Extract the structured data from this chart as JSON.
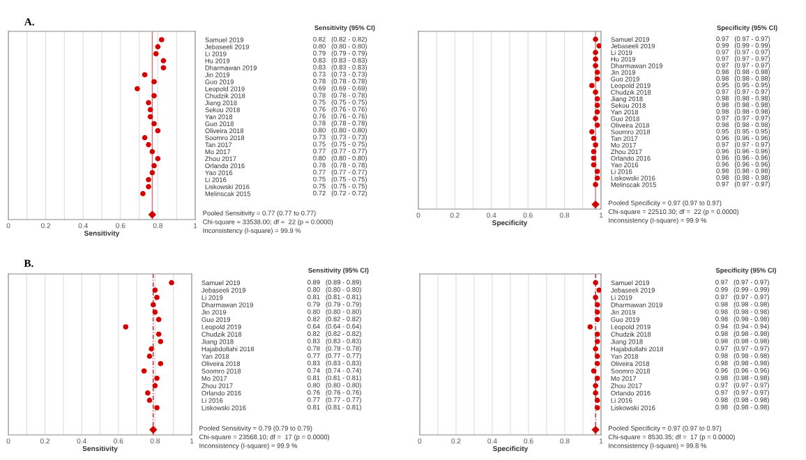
{
  "chart_data": [
    {
      "type": "scatter",
      "title": "A.",
      "xlabel": "Sensitivity",
      "orientation": "horizontal",
      "grid": "x",
      "legend": false,
      "categories": [
        "Samuel 2019",
        "Jebaseeli 2019",
        "Li 2019",
        "Hu 2019",
        "Dharmawan 2019",
        "Jin 2019",
        "Guo 2019",
        "Leopold 2019",
        "Chudzik 2018",
        "Jiang 2018",
        "Sekou 2018",
        "Yan 2018",
        "Guo 2018",
        "Oliveira 2018",
        "Soomro 2018",
        "Tan 2017",
        "Mo 2017",
        "Zhou 2017",
        "Orlando 2016",
        "Yao 2016",
        "Li 2016",
        "Liskowski 2016",
        "Melinscak 2015",
        null,
        null,
        null
      ],
      "xlim": [
        0,
        1
      ],
      "xticks": [
        0,
        {
          "value": 0.1,
          "label": null
        },
        0.2,
        {
          "value": 0.3,
          "label": null
        },
        0.4,
        {
          "value": 0.5,
          "label": null
        },
        0.6,
        {
          "value": 0.7,
          "label": null
        },
        0.8,
        {
          "value": 0.9,
          "label": null
        },
        1
      ],
      "series": [
        {
          "color": "#d40000",
          "marker": "circle",
          "values": [
            0.82,
            0.8,
            0.79,
            0.83,
            0.83,
            0.73,
            0.78,
            0.69,
            0.78,
            0.75,
            0.76,
            0.76,
            0.78,
            0.8,
            0.73,
            0.75,
            0.77,
            0.8,
            0.78,
            0.77,
            0.75,
            0.75,
            0.72,
            null,
            null,
            null
          ],
          "value_labels": [
            "0.82   (0.82 - 0.82)",
            "0.80   (0.80 - 0.80)",
            "0.79   (0.79 - 0.79)",
            "0.83   (0.83 - 0.83)",
            "0.83   (0.83 - 0.83)",
            "0.73   (0.73 - 0.73)",
            "0.78   (0.78 - 0.78)",
            "0.69   (0.69 - 0.69)",
            "0.78   (0.78 - 0.78)",
            "0.75   (0.75 - 0.75)",
            "0.76   (0.76 - 0.76)",
            "0.76   (0.76 - 0.76)",
            "0.78   (0.78 - 0.78)",
            "0.80   (0.80 - 0.80)",
            "0.73   (0.73 - 0.73)",
            "0.75   (0.75 - 0.75)",
            "0.77   (0.77 - 0.77)",
            "0.80   (0.80 - 0.80)",
            "0.78   (0.78 - 0.78)",
            "0.77   (0.77 - 0.77)",
            "0.75   (0.75 - 0.75)",
            "0.75   (0.75 - 0.75)",
            "0.72   (0.72 - 0.72)",
            null,
            null,
            null
          ]
        },
        {
          "color": "#d40000",
          "marker": "diamond",
          "values": [
            null,
            null,
            null,
            null,
            null,
            null,
            null,
            null,
            null,
            null,
            null,
            null,
            null,
            null,
            null,
            null,
            null,
            null,
            null,
            null,
            null,
            null,
            null,
            null,
            null,
            0.77
          ]
        }
      ],
      "ref_lines": [
        {
          "axis": "x",
          "value": 0.77,
          "color": "#e06060",
          "line_style": "solid"
        }
      ],
      "annotations": [
        "Sensitivity (95% CI)",
        "Pooled Sensitivity = 0.77 (0.77 to 0.77)",
        "Chi-square = 33538.00; df =  22 (p = 0.0000)",
        "Inconsistency (I-square) = 99.9 %"
      ]
    },
    {
      "type": "scatter",
      "xlabel": "Specificity",
      "orientation": "horizontal",
      "grid": "x",
      "legend": false,
      "categories": [
        "Samuel 2019",
        "Jebaseeli 2019",
        "Li 2019",
        "Hu 2019",
        "Dharmawan 2019",
        "Jin 2019",
        "Guo 2019",
        "Leopold 2019",
        "Chudzik 2018",
        "Jiang 2018",
        "Sekou 2018",
        "Yan 2018",
        "Guo 2018",
        "Oliveira 2018",
        "Soomro 2018",
        "Tan 2017",
        "Mo 2017",
        "Zhou 2017",
        "Orlando 2016",
        "Yao 2016",
        "Li 2016",
        "Liskowski 2016",
        "Melinscak 2015",
        null,
        null,
        null
      ],
      "xlim": [
        0,
        1
      ],
      "xticks": [
        0,
        {
          "value": 0.1,
          "label": null
        },
        0.2,
        {
          "value": 0.3,
          "label": null
        },
        0.4,
        {
          "value": 0.5,
          "label": null
        },
        0.6,
        {
          "value": 0.7,
          "label": null
        },
        0.8,
        {
          "value": 0.9,
          "label": null
        },
        1
      ],
      "series": [
        {
          "color": "#d40000",
          "marker": "circle",
          "values": [
            0.97,
            0.99,
            0.97,
            0.97,
            0.97,
            0.98,
            0.98,
            0.95,
            0.97,
            0.98,
            0.98,
            0.98,
            0.97,
            0.98,
            0.95,
            0.96,
            0.97,
            0.96,
            0.96,
            0.96,
            0.98,
            0.98,
            0.97,
            null,
            null,
            null
          ],
          "value_labels": [
            "0.97   (0.97 - 0.97)",
            "0.99   (0.99 - 0.99)",
            "0.97   (0.97 - 0.97)",
            "0.97   (0.97 - 0.97)",
            "0.97   (0.97 - 0.97)",
            "0.98   (0.98 - 0.98)",
            "0.98   (0.98 - 0.98)",
            "0.95   (0.95 - 0.95)",
            "0.97   (0.97 - 0.97)",
            "0.98   (0.98 - 0.98)",
            "0.98   (0.98 - 0.98)",
            "0.98   (0.98 - 0.98)",
            "0.97   (0.97 - 0.97)",
            "0.98   (0.98 - 0.98)",
            "0.95   (0.95 - 0.95)",
            "0.96   (0.96 - 0.96)",
            "0.97   (0.97 - 0.97)",
            "0.96   (0.96 - 0.96)",
            "0.96   (0.96 - 0.96)",
            "0.96   (0.96 - 0.96)",
            "0.98   (0.98 - 0.98)",
            "0.98   (0.98 - 0.98)",
            "0.97   (0.97 - 0.97)",
            null,
            null,
            null
          ]
        },
        {
          "color": "#d40000",
          "marker": "diamond",
          "values": [
            null,
            null,
            null,
            null,
            null,
            null,
            null,
            null,
            null,
            null,
            null,
            null,
            null,
            null,
            null,
            null,
            null,
            null,
            null,
            null,
            null,
            null,
            null,
            null,
            null,
            0.97
          ]
        }
      ],
      "ref_lines": [
        {
          "axis": "x",
          "value": 0.97,
          "color": "#e06060",
          "line_style": "solid"
        }
      ],
      "annotations": [
        "Specificity (95% CI)",
        "Pooled Specificity = 0.97 (0.97 to 0.97)",
        "Chi-square = 22510.30; df =  22 (p = 0.0000)",
        "Inconsistency (I-square) = 99.9 %"
      ]
    },
    {
      "type": "scatter",
      "title": "B.",
      "xlabel": "Sensitivity",
      "orientation": "horizontal",
      "grid": "x",
      "legend": false,
      "categories": [
        "Samuel 2019",
        "Jebaseeli 2019",
        "Li 2019",
        "Dharmawan 2019",
        "Jin 2019",
        "Guo 2019",
        "Leopold 2019",
        "Chudzik 2018",
        "Jiang 2018",
        "Hajabdollahi 2018",
        "Yan 2018",
        "Oliveira 2018",
        "Soomro 2018",
        "Mo 2017",
        "Zhou 2017",
        "Orlando 2016",
        "Li 2016",
        "Liskowski 2016",
        null,
        null,
        null
      ],
      "xlim": [
        0,
        1
      ],
      "xticks": [
        0,
        {
          "value": 0.1,
          "label": null
        },
        0.2,
        {
          "value": 0.3,
          "label": null
        },
        0.4,
        {
          "value": 0.5,
          "label": null
        },
        0.6,
        {
          "value": 0.7,
          "label": null
        },
        0.8,
        {
          "value": 0.9,
          "label": null
        },
        1
      ],
      "series": [
        {
          "color": "#d40000",
          "marker": "circle",
          "values": [
            0.89,
            0.8,
            0.81,
            0.79,
            0.8,
            0.82,
            0.64,
            0.82,
            0.83,
            0.78,
            0.77,
            0.83,
            0.74,
            0.81,
            0.8,
            0.76,
            0.77,
            0.81,
            null,
            null,
            null
          ],
          "value_labels": [
            "0.89   (0.89 - 0.89)",
            "0.80   (0.80 - 0.80)",
            "0.81   (0.81 - 0.81)",
            "0.79   (0.79 - 0.79)",
            "0.80   (0.80 - 0.80)",
            "0.82   (0.82 - 0.82)",
            "0.64   (0.64 - 0.64)",
            "0.82   (0.82 - 0.82)",
            "0.83   (0.83 - 0.83)",
            "0.78   (0.78 - 0.78)",
            "0.77   (0.77 - 0.77)",
            "0.83   (0.83 - 0.83)",
            "0.74   (0.74 - 0.74)",
            "0.81   (0.81 - 0.81)",
            "0.80   (0.80 - 0.80)",
            "0.76   (0.76 - 0.76)",
            "0.77   (0.77 - 0.77)",
            "0.81   (0.81 - 0.81)",
            null,
            null,
            null
          ]
        },
        {
          "color": "#d40000",
          "marker": "diamond",
          "values": [
            null,
            null,
            null,
            null,
            null,
            null,
            null,
            null,
            null,
            null,
            null,
            null,
            null,
            null,
            null,
            null,
            null,
            null,
            null,
            null,
            0.79
          ]
        }
      ],
      "ref_lines": [
        {
          "axis": "x",
          "value": 0.79,
          "color": "#d40000",
          "line_style": "dashed"
        }
      ],
      "annotations": [
        "Sensitivity (95% CI)",
        "Pooled Sensitivity = 0.79 (0.79 to 0.79)",
        "Chi-square = 23568.10; df =  17 (p = 0.0000)",
        "Inconsistency (I-square) = 99.9 %"
      ]
    },
    {
      "type": "scatter",
      "xlabel": "Specificity",
      "orientation": "horizontal",
      "grid": "x",
      "legend": false,
      "categories": [
        "Samuel 2019",
        "Jebaseeli 2019",
        "Li 2019",
        "Dharmawan 2019",
        "Jin 2019",
        "Guo 2019",
        "Leopold 2019",
        "Chudzik 2018",
        "Jiang 2018",
        "Hajabdollahi 2018",
        "Yan 2018",
        "Oliveira 2018",
        "Soomro 2018",
        "Mo 2017",
        "Zhou 2017",
        "Orlando 2016",
        "Li 2016",
        "Liskowski 2016",
        null,
        null,
        null
      ],
      "xlim": [
        0,
        1
      ],
      "xticks": [
        0,
        {
          "value": 0.1,
          "label": null
        },
        0.2,
        {
          "value": 0.3,
          "label": null
        },
        0.4,
        {
          "value": 0.5,
          "label": null
        },
        0.6,
        {
          "value": 0.7,
          "label": null
        },
        0.8,
        {
          "value": 0.9,
          "label": null
        },
        1
      ],
      "series": [
        {
          "color": "#d40000",
          "marker": "circle",
          "values": [
            0.97,
            0.99,
            0.97,
            0.98,
            0.98,
            0.98,
            0.94,
            0.98,
            0.98,
            0.97,
            0.98,
            0.98,
            0.96,
            0.98,
            0.97,
            0.97,
            0.98,
            0.98,
            null,
            null,
            null
          ],
          "value_labels": [
            "0.97   (0.97 - 0.97)",
            "0.99   (0.99 - 0.99)",
            "0.97   (0.97 - 0.97)",
            "0.98   (0.98 - 0.98)",
            "0.98   (0.98 - 0.98)",
            "0.98   (0.98 - 0.98)",
            "0.94   (0.94 - 0.94)",
            "0.98   (0.98 - 0.98)",
            "0.98   (0.98 - 0.98)",
            "0.97   (0.97 - 0.97)",
            "0.98   (0.98 - 0.98)",
            "0.98   (0.98 - 0.98)",
            "0.96   (0.96 - 0.96)",
            "0.98   (0.98 - 0.98)",
            "0.97   (0.97 - 0.97)",
            "0.97   (0.97 - 0.97)",
            "0.98   (0.98 - 0.98)",
            "0.98   (0.98 - 0.98)",
            null,
            null,
            null
          ]
        },
        {
          "color": "#d40000",
          "marker": "diamond",
          "values": [
            null,
            null,
            null,
            null,
            null,
            null,
            null,
            null,
            null,
            null,
            null,
            null,
            null,
            null,
            null,
            null,
            null,
            null,
            null,
            null,
            0.97
          ]
        }
      ],
      "ref_lines": [
        {
          "axis": "x",
          "value": 0.97,
          "color": "#d40000",
          "line_style": "dashed"
        }
      ],
      "annotations": [
        "Specificity (95% CI)",
        "Pooled Specificity = 0.97 (0.97 to 0.97)",
        "Chi-square = 8530.35; df =  17 (p = 0.0000)",
        "Inconsistency (I-square) = 99.8 %"
      ]
    }
  ]
}
